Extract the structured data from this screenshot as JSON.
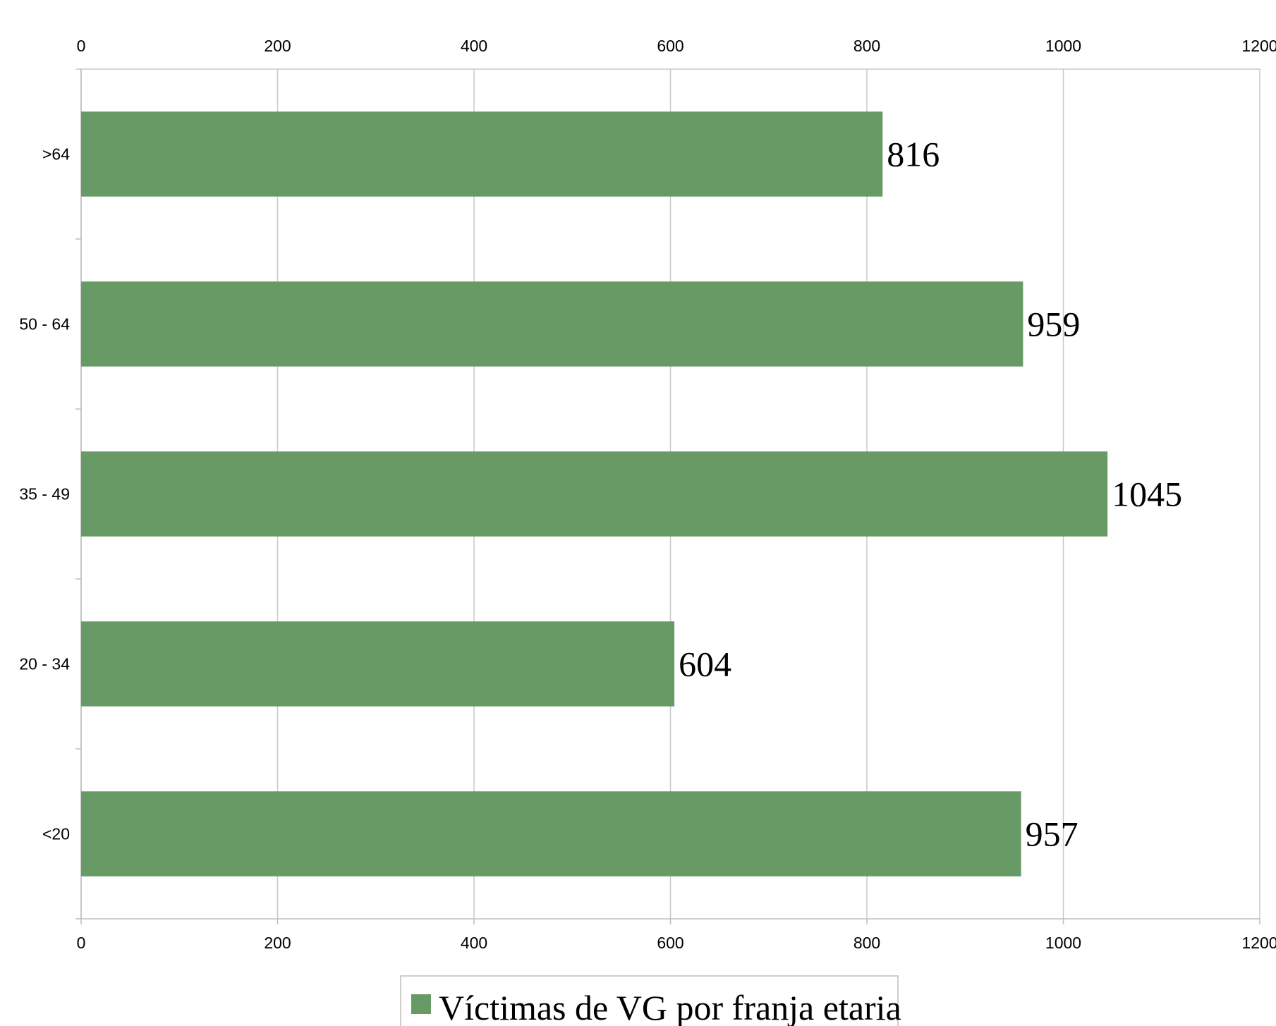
{
  "chart_data": {
    "type": "bar",
    "orientation": "horizontal",
    "categories": [
      "<20",
      "20 - 34",
      "35 - 49",
      "50 - 64",
      ">64"
    ],
    "series": [
      {
        "name": "Víctimas de VG por franja etaria",
        "values": [
          957,
          604,
          1045,
          959,
          816
        ],
        "color": "#689a66"
      }
    ],
    "xlim": [
      0,
      1200
    ],
    "xticks": [
      "0",
      "200",
      "400",
      "600",
      "800",
      "1000",
      "1200"
    ],
    "grid": true,
    "legend": "bottom-center",
    "data_labels": true
  }
}
